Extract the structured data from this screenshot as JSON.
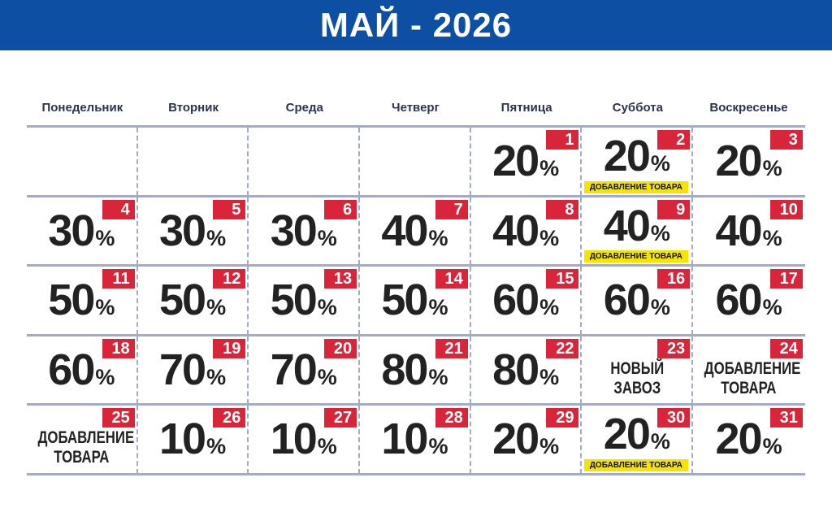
{
  "header": {
    "title": "МАЙ - 2026"
  },
  "weekdays": [
    "Понедельник",
    "Вторник",
    "Среда",
    "Четверг",
    "Пятница",
    "Суббота",
    "Воскресенье"
  ],
  "weeks": [
    [
      null,
      null,
      null,
      null,
      {
        "day": "1",
        "value": "20",
        "unit": "%"
      },
      {
        "day": "2",
        "value": "20",
        "unit": "%",
        "note": "ДОБАВЛЕНИЕ ТОВАРА"
      },
      {
        "day": "3",
        "value": "20",
        "unit": "%"
      }
    ],
    [
      {
        "day": "4",
        "value": "30",
        "unit": "%"
      },
      {
        "day": "5",
        "value": "30",
        "unit": "%"
      },
      {
        "day": "6",
        "value": "30",
        "unit": "%"
      },
      {
        "day": "7",
        "value": "40",
        "unit": "%"
      },
      {
        "day": "8",
        "value": "40",
        "unit": "%"
      },
      {
        "day": "9",
        "value": "40",
        "unit": "%",
        "note": "ДОБАВЛЕНИЕ ТОВАРА"
      },
      {
        "day": "10",
        "value": "40",
        "unit": "%"
      }
    ],
    [
      {
        "day": "11",
        "value": "50",
        "unit": "%"
      },
      {
        "day": "12",
        "value": "50",
        "unit": "%"
      },
      {
        "day": "13",
        "value": "50",
        "unit": "%"
      },
      {
        "day": "14",
        "value": "50",
        "unit": "%"
      },
      {
        "day": "15",
        "value": "60",
        "unit": "%"
      },
      {
        "day": "16",
        "value": "60",
        "unit": "%"
      },
      {
        "day": "17",
        "value": "60",
        "unit": "%"
      }
    ],
    [
      {
        "day": "18",
        "value": "60",
        "unit": "%"
      },
      {
        "day": "19",
        "value": "70",
        "unit": "%"
      },
      {
        "day": "20",
        "value": "70",
        "unit": "%"
      },
      {
        "day": "21",
        "value": "80",
        "unit": "%"
      },
      {
        "day": "22",
        "value": "80",
        "unit": "%"
      },
      {
        "day": "23",
        "lines": [
          "НОВЫЙ",
          "ЗАВОЗ"
        ]
      },
      {
        "day": "24",
        "lines": [
          "ДОБАВЛЕНИЕ",
          "ТОВАРА"
        ]
      }
    ],
    [
      {
        "day": "25",
        "lines": [
          "ДОБАВЛЕНИЕ",
          "ТОВАРА"
        ]
      },
      {
        "day": "26",
        "value": "10",
        "unit": "%"
      },
      {
        "day": "27",
        "value": "10",
        "unit": "%"
      },
      {
        "day": "28",
        "value": "10",
        "unit": "%"
      },
      {
        "day": "29",
        "value": "20",
        "unit": "%"
      },
      {
        "day": "30",
        "value": "20",
        "unit": "%",
        "note": "ДОБАВЛЕНИЕ ТОВАРА"
      },
      {
        "day": "31",
        "value": "20",
        "unit": "%"
      }
    ]
  ]
}
